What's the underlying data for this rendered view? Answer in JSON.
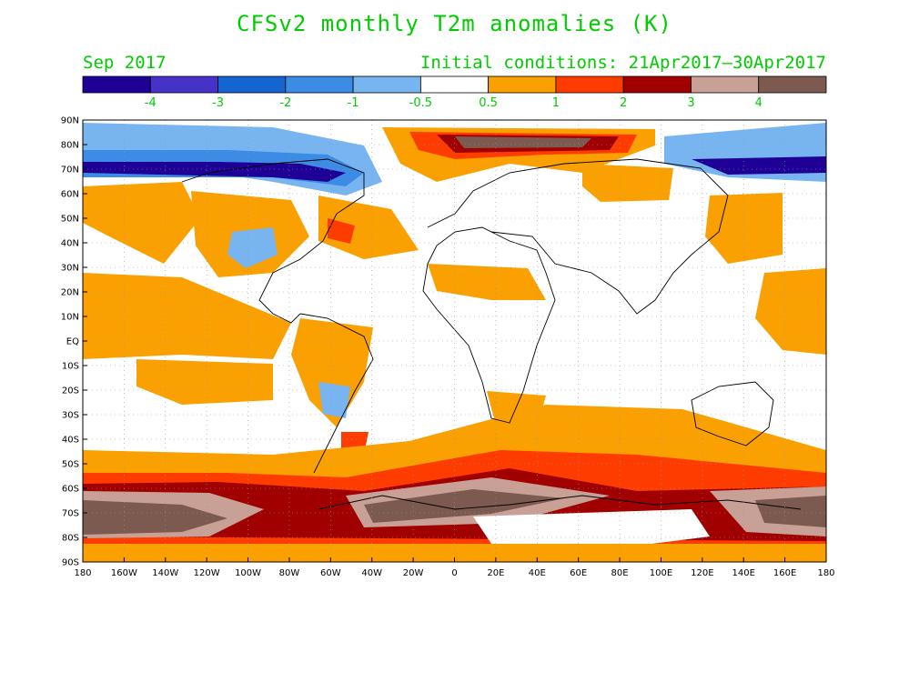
{
  "title": "CFSv2 monthly T2m anomalies (K)",
  "valid_month": "Sep 2017",
  "initial_conditions": "Initial conditions: 21Apr2017–30Apr2017",
  "colorbar": {
    "colors": [
      "#1e0096",
      "#4632c8",
      "#1464d2",
      "#3c8ce6",
      "#78b4f0",
      "#ffffff",
      "#faa000",
      "#ff3c00",
      "#a00000",
      "#c8a096",
      "#7d5a50"
    ],
    "labels": [
      "-4",
      "-3",
      "-2",
      "-1",
      "-0.5",
      "0.5",
      "1",
      "2",
      "3",
      "4"
    ]
  },
  "lat_labels": [
    "90N",
    "80N",
    "70N",
    "60N",
    "50N",
    "40N",
    "30N",
    "20N",
    "10N",
    "EQ",
    "10S",
    "20S",
    "30S",
    "40S",
    "50S",
    "60S",
    "70S",
    "80S",
    "90S"
  ],
  "lon_labels": [
    "180",
    "160W",
    "140W",
    "120W",
    "100W",
    "80W",
    "60W",
    "40W",
    "20W",
    "0",
    "20E",
    "40E",
    "60E",
    "80E",
    "100E",
    "120E",
    "140E",
    "160E",
    "180"
  ]
}
